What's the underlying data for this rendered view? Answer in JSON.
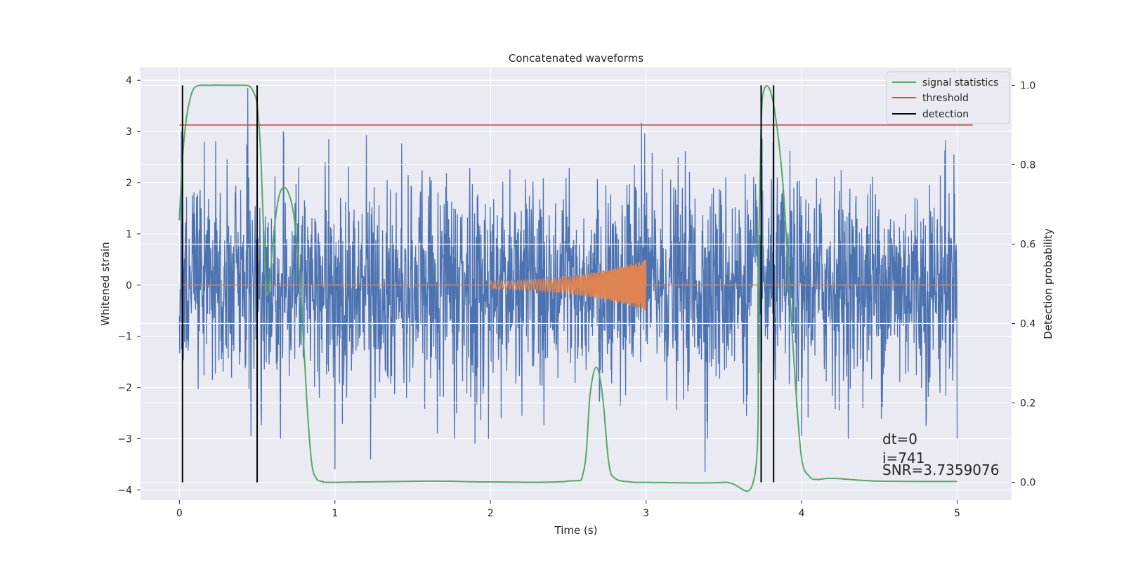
{
  "chart_data": {
    "type": "line",
    "title": "Concatenated waveforms",
    "xlabel": "Time (s)",
    "ylabel": "Whitened strain",
    "y2label": "Detection probability",
    "xlim": [
      -0.25,
      5.35
    ],
    "ylim": [
      -4.2,
      4.25
    ],
    "y2lim": [
      -0.045,
      1.045
    ],
    "xticks": [
      0,
      1,
      2,
      3,
      4,
      5
    ],
    "xtick_labels": [
      "0",
      "1",
      "2",
      "3",
      "4",
      "5"
    ],
    "yticks": [
      -4,
      -3,
      -2,
      -1,
      0,
      1,
      2,
      3,
      4
    ],
    "ytick_labels": [
      "−4",
      "−3",
      "−2",
      "−1",
      "0",
      "1",
      "2",
      "3",
      "4"
    ],
    "y2ticks": [
      0.0,
      0.2,
      0.4,
      0.6,
      0.8,
      1.0
    ],
    "y2tick_labels": [
      "0.0",
      "0.2",
      "0.4",
      "0.6",
      "0.8",
      "1.0"
    ],
    "grid": true,
    "legend_position": "top-right",
    "legend": [
      {
        "label": "signal statistics",
        "color": "#55a868"
      },
      {
        "label": "threshold",
        "color": "#c44e52"
      },
      {
        "label": "detection",
        "color": "#000000"
      }
    ],
    "colors": {
      "strain": "#4c72b0",
      "injection": "#dd8452",
      "background": "#eaeaf2",
      "grid": "#ffffff"
    },
    "series": [
      {
        "name": "whitened strain noise",
        "axis": "left",
        "x_range": [
          0,
          5
        ],
        "amplitude_typical": 1.0,
        "spikes": [
          {
            "x": 0.44,
            "y": 3.85
          },
          {
            "x": 1.23,
            "y": 3.82
          },
          {
            "x": 2.97,
            "y": 3.17
          },
          {
            "x": 0.96,
            "y": 2.85
          },
          {
            "x": 0.67,
            "y": 2.85
          },
          {
            "x": 0.16,
            "y": 2.8
          },
          {
            "x": 4.92,
            "y": 2.63
          },
          {
            "x": 4.98,
            "y": 2.55
          },
          {
            "x": 1.0,
            "y": -3.6
          },
          {
            "x": 3.38,
            "y": -3.65
          },
          {
            "x": 0.46,
            "y": -2.95
          },
          {
            "x": 1.23,
            "y": -3.4
          },
          {
            "x": 4.0,
            "y": -2.95
          },
          {
            "x": 4.8,
            "y": -2.75
          },
          {
            "x": 1.9,
            "y": -3.1
          }
        ]
      },
      {
        "name": "injected chirp",
        "axis": "left",
        "x_start": 2.0,
        "x_end": 3.0,
        "start_amplitude": 0.08,
        "end_amplitude": 0.5,
        "baseline_range": [
          0,
          5
        ]
      },
      {
        "name": "signal statistics",
        "axis": "right",
        "x": [
          0.0,
          0.01,
          0.02,
          0.04,
          0.06,
          0.1,
          0.2,
          0.3,
          0.4,
          0.45,
          0.48,
          0.5,
          0.52,
          0.54,
          0.56,
          0.58,
          0.6,
          0.63,
          0.66,
          0.7,
          0.74,
          0.78,
          0.82,
          0.85,
          0.88,
          0.92,
          1.0,
          1.6,
          2.0,
          2.5,
          2.6,
          2.64,
          2.68,
          2.72,
          2.76,
          2.8,
          2.9,
          3.0,
          3.5,
          3.7,
          3.72,
          3.74,
          3.76,
          3.8,
          3.84,
          3.88,
          3.92,
          3.96,
          4.0,
          4.05,
          4.1,
          4.2,
          4.5,
          5.0
        ],
        "y": [
          0.66,
          0.75,
          0.82,
          0.9,
          0.95,
          0.995,
          1.0,
          1.0,
          1.0,
          0.998,
          0.98,
          0.95,
          0.85,
          0.65,
          0.48,
          0.5,
          0.6,
          0.7,
          0.74,
          0.73,
          0.66,
          0.48,
          0.2,
          0.05,
          0.01,
          0.002,
          0.0,
          0.003,
          0.001,
          0.003,
          0.03,
          0.22,
          0.29,
          0.22,
          0.05,
          0.01,
          0.001,
          0.0,
          0.0,
          0.02,
          0.5,
          0.9,
          0.99,
          0.985,
          0.9,
          0.75,
          0.5,
          0.25,
          0.06,
          0.015,
          0.007,
          0.01,
          0.003,
          0.002
        ]
      },
      {
        "name": "threshold",
        "axis": "right",
        "x": [
          0.0,
          5.1
        ],
        "y": [
          0.9,
          0.9
        ]
      },
      {
        "name": "detection",
        "axis": "right",
        "x_values": [
          0.02,
          0.5,
          3.74,
          3.82
        ],
        "y_range": [
          0.0,
          1.0
        ]
      }
    ],
    "annotations": [
      {
        "text": "dt=0"
      },
      {
        "text": "i=741"
      },
      {
        "text": "SNR=3.7359076"
      }
    ]
  }
}
